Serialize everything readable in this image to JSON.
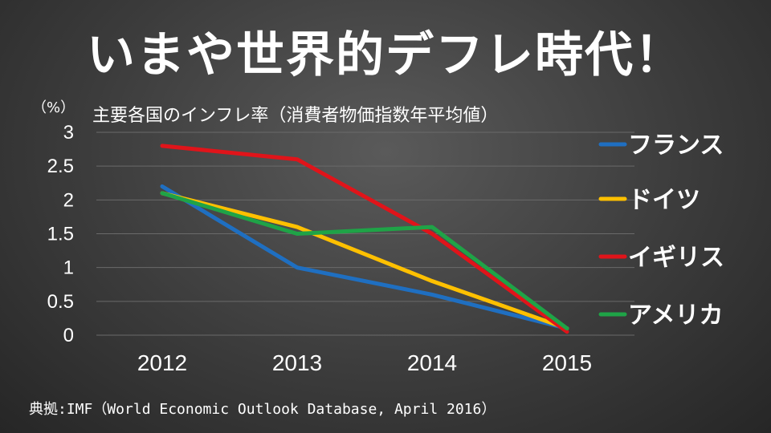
{
  "title": "いまや世界的デフレ時代！",
  "unit_label": "（%）",
  "source": "典拠:IMF（World Economic Outlook Database, April 2016）",
  "chart_data": {
    "type": "line",
    "title": "主要各国のインフレ率（消費者物価指数年平均値）",
    "ylabel": "（%）",
    "xlabel": "",
    "x": [
      "2012",
      "2013",
      "2014",
      "2015"
    ],
    "ylim": [
      0,
      3
    ],
    "yticks": [
      "0",
      "0.5",
      "1",
      "1.5",
      "2",
      "2.5",
      "3"
    ],
    "grid": true,
    "legend_position": "right",
    "series": [
      {
        "name": "フランス",
        "color": "#1f6fc1",
        "values": [
          2.2,
          1.0,
          0.6,
          0.1
        ]
      },
      {
        "name": "ドイツ",
        "color": "#ffc000",
        "values": [
          2.1,
          1.6,
          0.8,
          0.1
        ]
      },
      {
        "name": "イギリス",
        "color": "#e0141a",
        "values": [
          2.8,
          2.6,
          1.5,
          0.05
        ]
      },
      {
        "name": "アメリカ",
        "color": "#1fa347",
        "values": [
          2.1,
          1.5,
          1.6,
          0.1
        ]
      }
    ]
  }
}
